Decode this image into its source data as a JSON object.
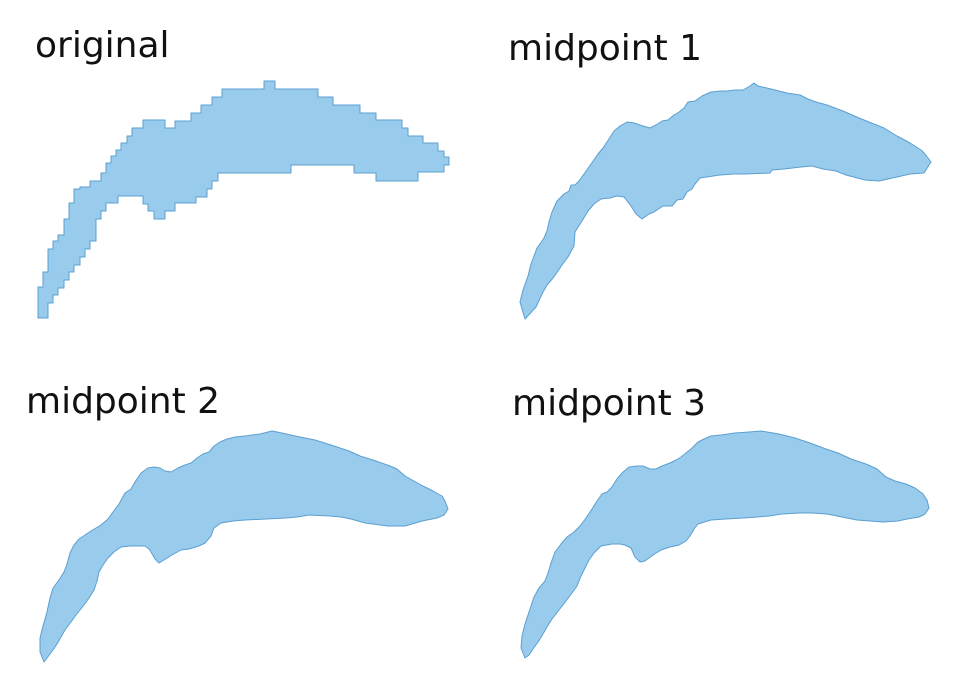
{
  "panels": [
    {
      "id": "original",
      "title": "original"
    },
    {
      "id": "midpoint-1",
      "title": "midpoint 1"
    },
    {
      "id": "midpoint-2",
      "title": "midpoint 2"
    },
    {
      "id": "midpoint-3",
      "title": "midpoint 3"
    }
  ],
  "style": {
    "fill_color": "#99CBEC",
    "stroke_color": "#5B9FD0"
  }
}
